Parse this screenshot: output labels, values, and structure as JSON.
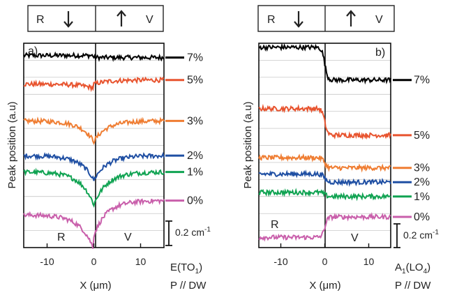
{
  "chart_data": [
    {
      "type": "line",
      "panel_label": "a)",
      "ylabel": "Peak position (a.u)",
      "xlabel": "X (μm)",
      "xlim": [
        -15,
        15
      ],
      "xticks": [
        -10,
        0,
        10
      ],
      "domain_box": {
        "left_letter": "R",
        "right_letter": "V"
      },
      "region_labels": [
        "R",
        "V"
      ],
      "mode": {
        "base": "E(TO",
        "sub": "1",
        "close": ")"
      },
      "polarization": "P // DW",
      "scale_bar": "0.2 cm",
      "scale_bar_exp": "-1",
      "grid": true,
      "series": [
        {
          "name": "7%",
          "color": "#000000",
          "left_level": 0.94,
          "right_level": 0.93,
          "dip": 0.0,
          "step": 0.0
        },
        {
          "name": "5%",
          "color": "#e8542f",
          "left_level": 0.8,
          "right_level": 0.82,
          "dip": 0.02,
          "step": 0.0
        },
        {
          "name": "3%",
          "color": "#ef7d32",
          "left_level": 0.62,
          "right_level": 0.62,
          "dip": 0.1,
          "step": 0.0
        },
        {
          "name": "2%",
          "color": "#1f4fa3",
          "left_level": 0.45,
          "right_level": 0.45,
          "dip": 0.12,
          "step": 0.0
        },
        {
          "name": "1%",
          "color": "#10a352",
          "left_level": 0.37,
          "right_level": 0.37,
          "dip": 0.16,
          "step": 0.0
        },
        {
          "name": "0%",
          "color": "#c95fab",
          "left_level": 0.16,
          "right_level": 0.23,
          "dip": 0.17,
          "step": 0.0
        }
      ]
    },
    {
      "type": "line",
      "panel_label": "b)",
      "ylabel": "Peak position (a.u)",
      "xlabel": "X (μm)",
      "xlim": [
        -15,
        15
      ],
      "xticks": [
        -10,
        0,
        10
      ],
      "domain_box": {
        "left_letter": "R",
        "right_letter": "V"
      },
      "region_labels": [
        "R",
        "V"
      ],
      "mode": {
        "base": "A",
        "sub": "1",
        "mid": "(LO",
        "sub2": "4",
        "close": ")"
      },
      "polarization": "P // DW",
      "scale_bar": "0.2 cm",
      "scale_bar_exp": "-1",
      "grid": true,
      "series": [
        {
          "name": "7%",
          "color": "#000000",
          "left_level": 0.98,
          "right_level": 0.82
        },
        {
          "name": "5%",
          "color": "#e8542f",
          "left_level": 0.68,
          "right_level": 0.55
        },
        {
          "name": "3%",
          "color": "#ef7d32",
          "left_level": 0.44,
          "right_level": 0.39
        },
        {
          "name": "2%",
          "color": "#1f4fa3",
          "left_level": 0.36,
          "right_level": 0.32
        },
        {
          "name": "1%",
          "color": "#10a352",
          "left_level": 0.27,
          "right_level": 0.25
        },
        {
          "name": "0%",
          "color": "#c95fab",
          "left_level": 0.05,
          "right_level": 0.15
        }
      ]
    }
  ]
}
